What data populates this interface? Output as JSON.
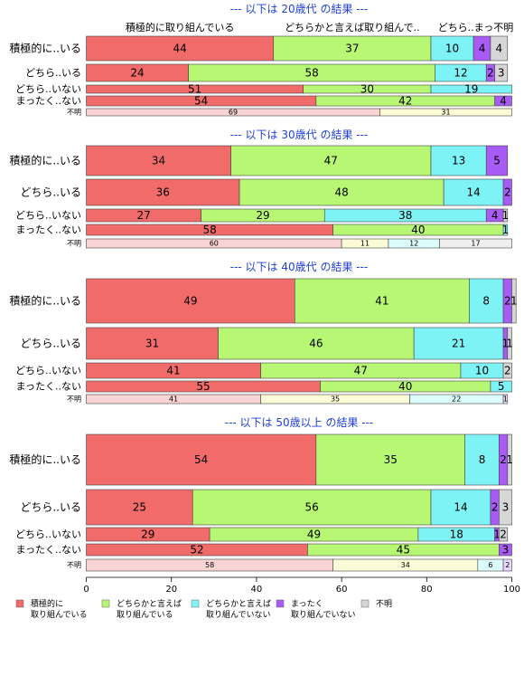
{
  "chart_data": {
    "type": "bar",
    "orientation": "horizontal",
    "stacked": true,
    "xlim": [
      0,
      100
    ],
    "xticks": [
      0,
      20,
      40,
      60,
      80,
      100
    ],
    "colors": {
      "積極的に取り組んでいる": "#f26b6b",
      "どちらかと言えば取り組んでいる": "#b8f774",
      "どちらかと言えば取り組んでいない": "#7ef3f6",
      "まったく取り組んでいない": "#a95cf5",
      "不明": "#d6d6d6"
    },
    "light_colors": {
      "積極的に取り組んでいる": "#f9d4d4",
      "どちらかと言えば取り組んでいる": "#fbfbd8",
      "どちらかと言えば取り組んでいない": "#dcfbfc",
      "まったく取り組んでいない": "#ecd7fc",
      "不明": "#efefef"
    },
    "legend": [
      {
        "key": "積極的に取り組んでいる",
        "lines": [
          "積極的に",
          "取り組んでいる"
        ]
      },
      {
        "key": "どちらかと言えば取り組んでいる",
        "lines": [
          "どちらかと言えば",
          "取り組んでいる"
        ]
      },
      {
        "key": "どちらかと言えば取り組んでいない",
        "lines": [
          "どちらかと言えば",
          "取り組んでいない"
        ]
      },
      {
        "key": "まったく取り組んでいない",
        "lines": [
          "まったく",
          "取り組んでいない"
        ]
      },
      {
        "key": "不明",
        "lines": [
          "不明"
        ]
      }
    ],
    "series_order": [
      "積極的に取り組んでいる",
      "どちらかと言えば取り組んでいる",
      "どちらかと言えば取り組んでいない",
      "まったく取り組んでいない",
      "不明"
    ],
    "panels": [
      {
        "title": "--- 以下は 20歳代 の結果 ---",
        "column_labels": [
          "積極的に取り組んでいる",
          "どちらかと言えば取り組んで..",
          "どちら..まっ不明"
        ],
        "rows": [
          {
            "label": "積極的に..いる",
            "size": "large",
            "values": [
              44,
              37,
              10,
              4,
              4
            ]
          },
          {
            "label": "どちら..いる",
            "size": "medium",
            "values": [
              24,
              58,
              12,
              2,
              3
            ]
          },
          {
            "label": "どちら..いない",
            "size": "small",
            "values": [
              51,
              30,
              19,
              0,
              0
            ]
          },
          {
            "label": "まったく..ない",
            "size": "medium",
            "values": [
              54,
              42,
              0,
              4,
              0
            ]
          },
          {
            "label": "不明",
            "size": "tiny",
            "light": true,
            "values": [
              69,
              31,
              0,
              0,
              0
            ]
          }
        ]
      },
      {
        "title": "--- 以下は 30歳代 の結果 ---",
        "rows": [
          {
            "label": "積極的に..いる",
            "size": "large",
            "values": [
              34,
              47,
              13,
              5,
              0
            ]
          },
          {
            "label": "どちら..いる",
            "size": "large",
            "values": [
              36,
              48,
              14,
              2,
              0
            ]
          },
          {
            "label": "どちら..いない",
            "size": "medium",
            "values": [
              27,
              29,
              38,
              4,
              1
            ]
          },
          {
            "label": "まったく..ない",
            "size": "medium",
            "values": [
              58,
              40,
              1,
              0,
              0
            ]
          },
          {
            "label": "不明",
            "size": "tiny",
            "light": true,
            "values": [
              60,
              11,
              12,
              0,
              17
            ]
          }
        ]
      },
      {
        "title": "--- 以下は 40歳代 の結果 ---",
        "rows": [
          {
            "label": "積極的に..いる",
            "size": "xlarge",
            "values": [
              49,
              41,
              8,
              2,
              1
            ]
          },
          {
            "label": "どちら..いる",
            "size": "large",
            "values": [
              31,
              46,
              21,
              1,
              1
            ]
          },
          {
            "label": "どちら..いない",
            "size": "medium",
            "values": [
              41,
              47,
              10,
              0,
              2
            ]
          },
          {
            "label": "まったく..ない",
            "size": "small",
            "values": [
              55,
              40,
              5,
              0,
              0
            ]
          },
          {
            "label": "不明",
            "size": "tiny",
            "light": true,
            "values": [
              41,
              35,
              22,
              1,
              0
            ]
          }
        ]
      },
      {
        "title": "--- 以下は 50歳以上 の結果 ---",
        "rows": [
          {
            "label": "積極的に..いる",
            "size": "xlarge",
            "values": [
              54,
              35,
              8,
              2,
              1
            ]
          },
          {
            "label": "どちら..いる",
            "size": "large",
            "values": [
              25,
              56,
              14,
              2,
              3
            ]
          },
          {
            "label": "どちら..いない",
            "size": "medium",
            "values": [
              29,
              49,
              18,
              1,
              2
            ]
          },
          {
            "label": "まったく..ない",
            "size": "small",
            "values": [
              52,
              45,
              0,
              3,
              0
            ]
          },
          {
            "label": "不明",
            "size": "tiny",
            "light": true,
            "values": [
              58,
              34,
              6,
              2,
              0
            ]
          }
        ]
      }
    ]
  }
}
